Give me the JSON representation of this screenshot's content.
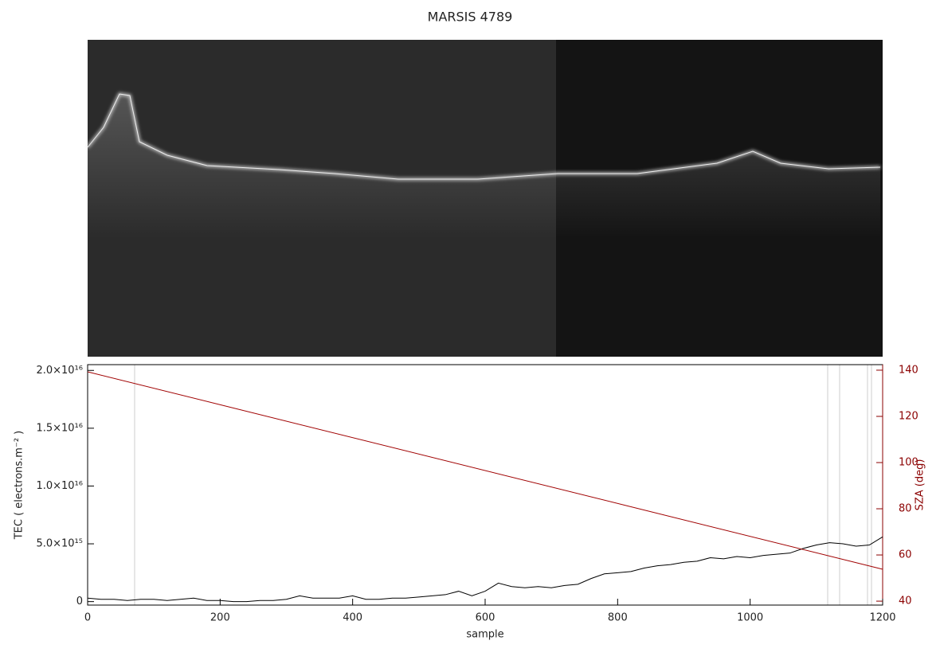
{
  "chart_data": {
    "type": "line",
    "title": "MARSIS 4789",
    "xlabel": "sample",
    "ylabel": "TEC ( electrons.m⁻² )",
    "y2label": "SZA (deg)",
    "xlim": [
      0,
      1200
    ],
    "xticks": [
      0,
      200,
      400,
      600,
      800,
      1000,
      1200
    ],
    "ylim": [
      -300000000000000.0,
      2.05e+16
    ],
    "yticks": [
      0,
      {
        "value": 5000000000000000.0,
        "label": "5.0×10¹⁵"
      },
      {
        "value": 1e+16,
        "label": "1.0×10¹⁶"
      },
      {
        "value": 1.5e+16,
        "label": "1.5×10¹⁶"
      },
      {
        "value": 2e+16,
        "label": "2.0×10¹⁶"
      }
    ],
    "y2lim": [
      38.3,
      142.4
    ],
    "y2ticks": [
      40,
      60,
      80,
      100,
      120,
      140
    ],
    "series": [
      {
        "color": "#000000",
        "axis": "y",
        "x": [
          0,
          20,
          40,
          60,
          80,
          100,
          120,
          140,
          160,
          180,
          200,
          220,
          240,
          260,
          280,
          300,
          320,
          340,
          360,
          380,
          400,
          420,
          440,
          460,
          480,
          500,
          520,
          540,
          560,
          580,
          600,
          620,
          640,
          660,
          680,
          700,
          720,
          740,
          760,
          780,
          800,
          820,
          840,
          860,
          880,
          900,
          920,
          940,
          960,
          980,
          1000,
          1020,
          1040,
          1060,
          1080,
          1100,
          1120,
          1140,
          1160,
          1180,
          1200
        ],
        "values": [
          300000000000000.0,
          200000000000000.0,
          200000000000000.0,
          100000000000000.0,
          200000000000000.0,
          200000000000000.0,
          100000000000000.0,
          200000000000000.0,
          300000000000000.0,
          100000000000000.0,
          100000000000000.0,
          0,
          0,
          100000000000000.0,
          100000000000000.0,
          200000000000000.0,
          500000000000000.0,
          300000000000000.0,
          300000000000000.0,
          300000000000000.0,
          500000000000000.0,
          200000000000000.0,
          200000000000000.0,
          300000000000000.0,
          300000000000000.0,
          400000000000000.0,
          500000000000000.0,
          600000000000000.0,
          900000000000000.0,
          500000000000000.0,
          900000000000000.0,
          1600000000000000.0,
          1300000000000000.0,
          1200000000000000.0,
          1300000000000000.0,
          1200000000000000.0,
          1400000000000000.0,
          1500000000000000.0,
          2000000000000000.0,
          2400000000000000.0,
          2500000000000000.0,
          2600000000000000.0,
          2900000000000000.0,
          3100000000000000.0,
          3200000000000000.0,
          3400000000000000.0,
          3500000000000000.0,
          3800000000000000.0,
          3700000000000000.0,
          3900000000000000.0,
          3800000000000000.0,
          4000000000000000.0,
          4100000000000000.0,
          4200000000000000.0,
          4600000000000000.0,
          4900000000000000.0,
          5100000000000000.0,
          5000000000000000.0,
          4800000000000000.0,
          4900000000000000.0,
          5600000000000000.0
        ]
      },
      {
        "color": "#a00000",
        "axis": "y2",
        "x": [
          0,
          1200
        ],
        "values": [
          139.3,
          53.8
        ]
      }
    ]
  }
}
